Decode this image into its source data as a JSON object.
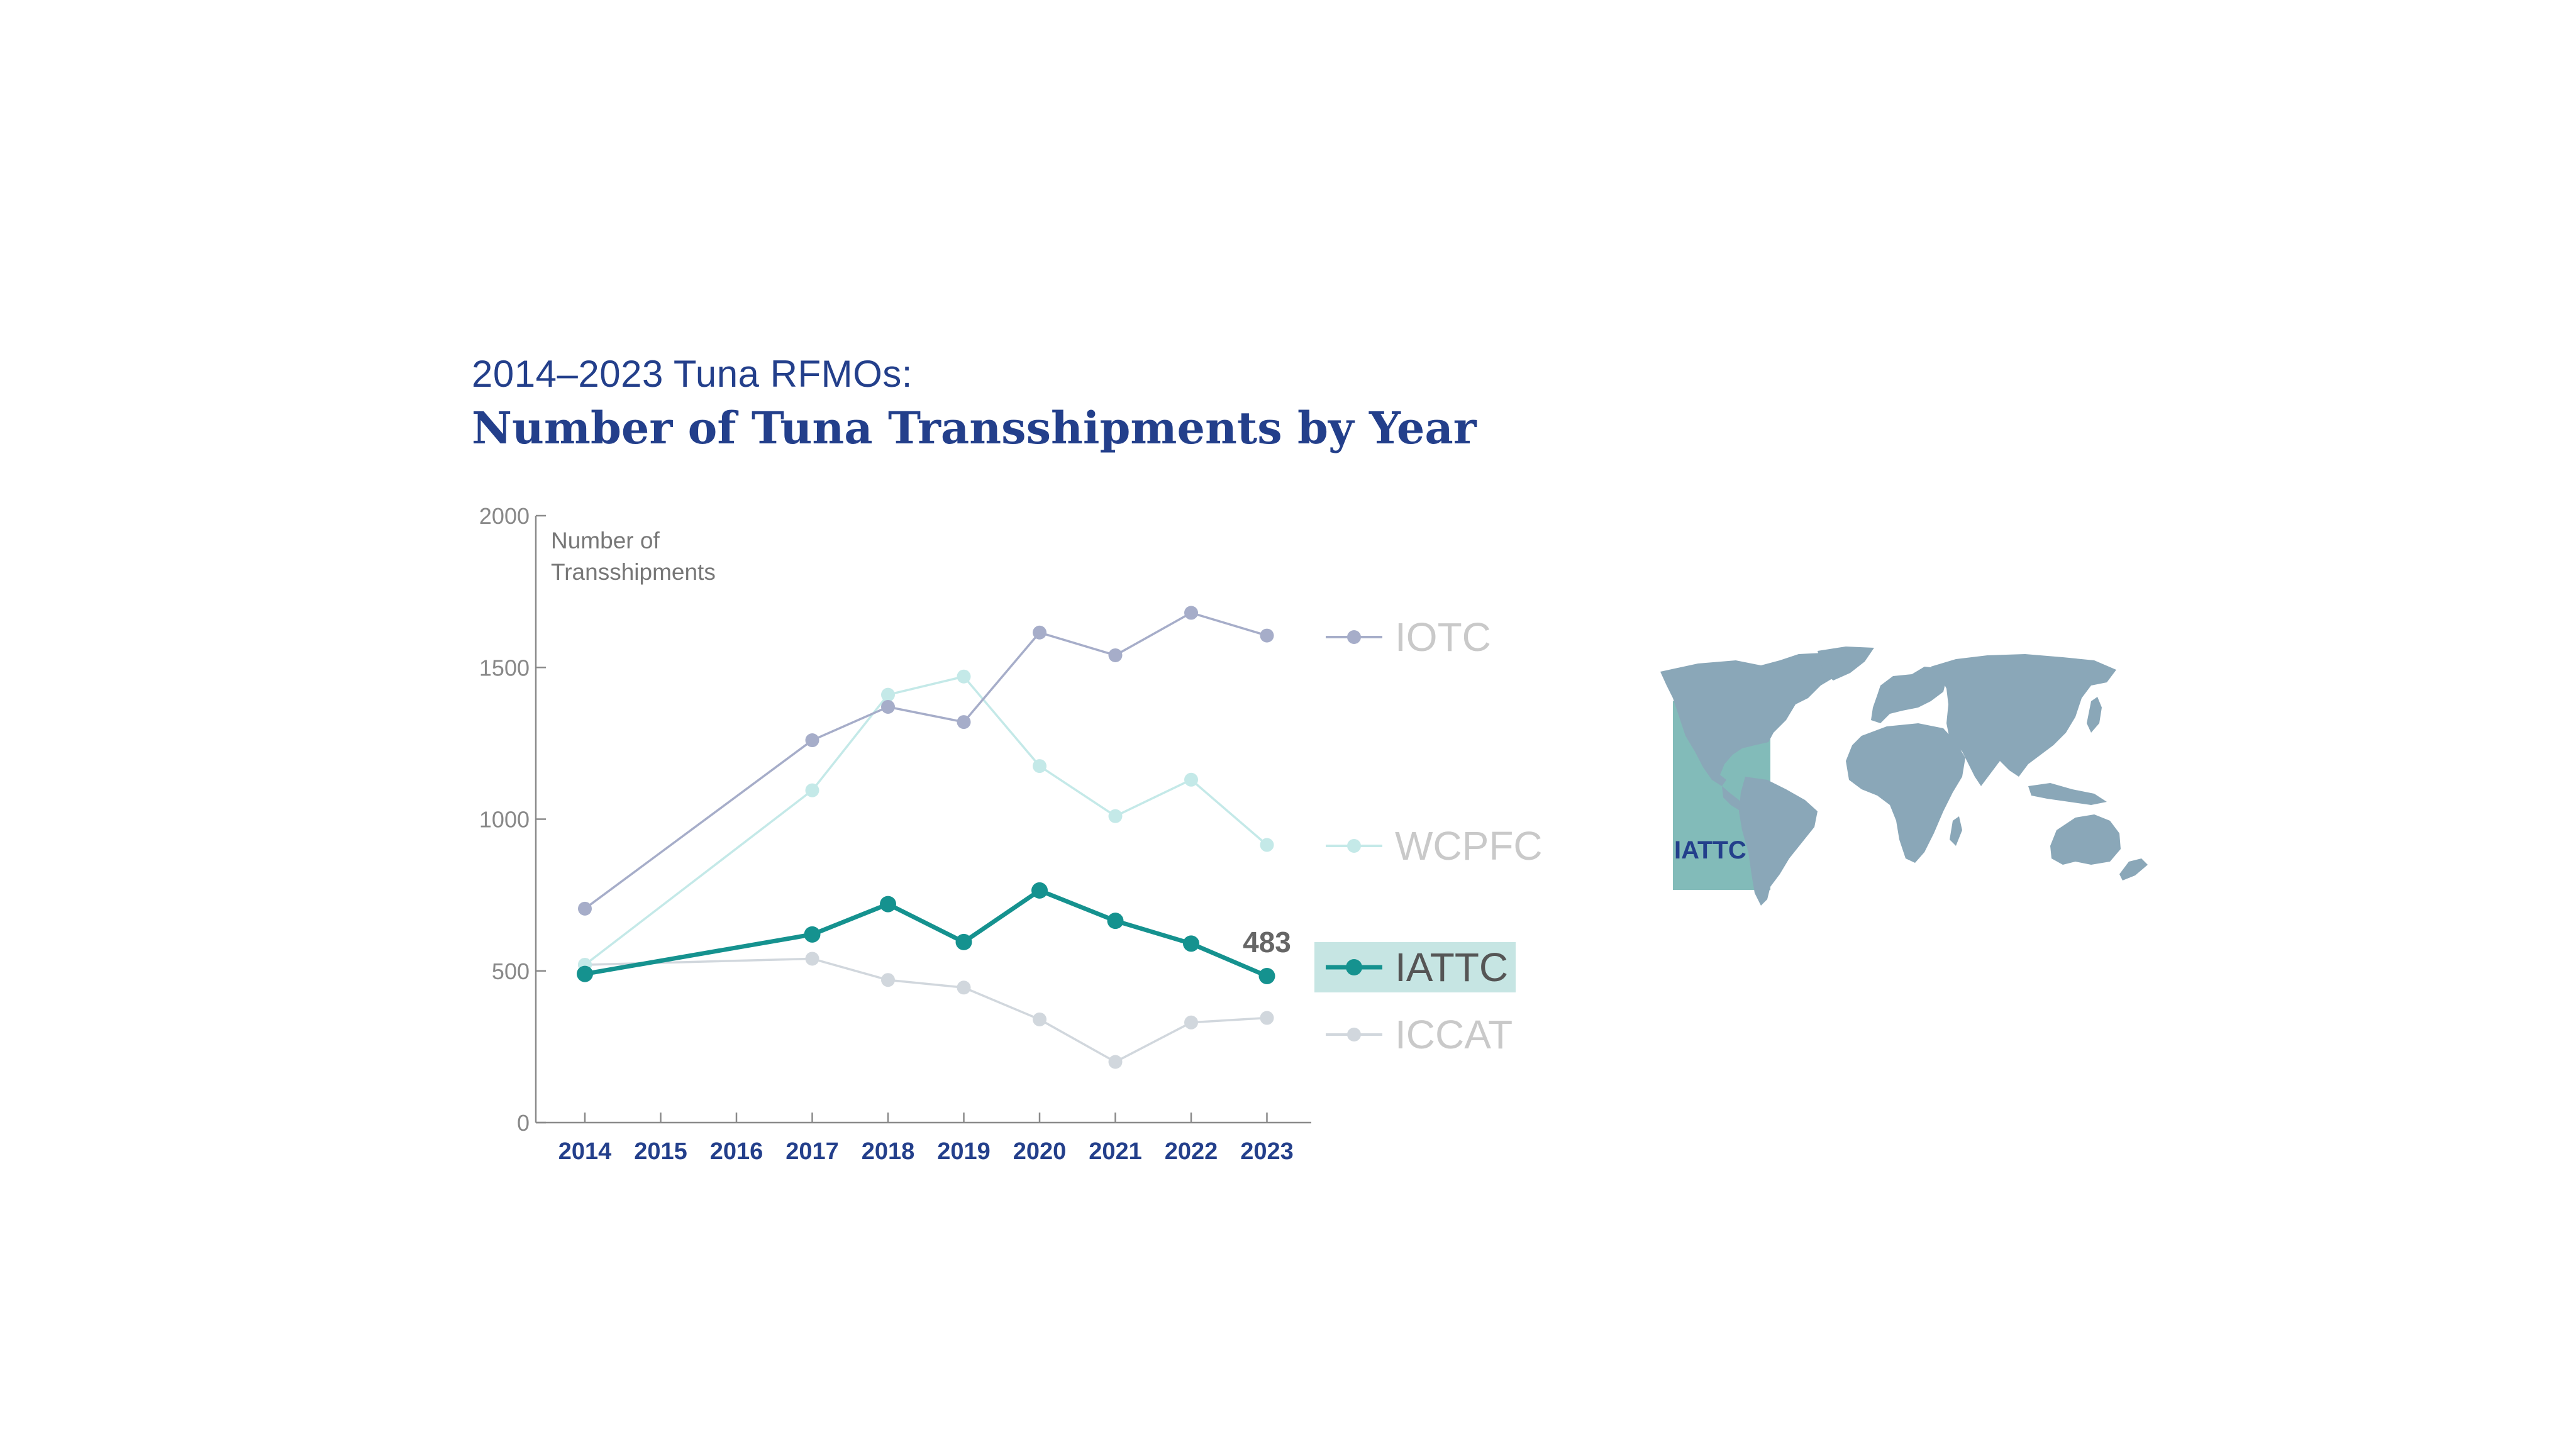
{
  "header": {
    "subtitle": "2014–2023 Tuna RFMOs:",
    "title": "Number of Tuna Transshipments by Year"
  },
  "colors": {
    "IOTC": "#a6adc9",
    "WCPFC": "#c4e9e8",
    "IATTC": "#15928f",
    "ICCAT": "#d1d7dd",
    "iattc_highlight": "#c6e5e3",
    "axis": "#8a8a8a",
    "tick_label": "#888888",
    "year_label": "#233f8b",
    "legend_text": "#c9c9c9",
    "legend_text_active": "#555555",
    "map_land": "#8aa7b8",
    "map_region": "#82bbb9",
    "map_label": "#233f8b"
  },
  "chart_data": {
    "type": "line",
    "title": "Number of Tuna Transshipments by Year",
    "subtitle": "2014–2023 Tuna RFMOs:",
    "ylabel_lines": [
      "Number of",
      "Transshipments"
    ],
    "xlabel": "",
    "ylim": [
      0,
      2000
    ],
    "yticks": [
      0,
      500,
      1000,
      1500,
      2000
    ],
    "categories": [
      "2014",
      "2015",
      "2016",
      "2017",
      "2018",
      "2019",
      "2020",
      "2021",
      "2022",
      "2023"
    ],
    "grid": false,
    "legend": "right, inline",
    "series": [
      {
        "name": "IOTC",
        "values": [
          705,
          null,
          null,
          1260,
          1370,
          1320,
          1615,
          1540,
          1680,
          1605
        ]
      },
      {
        "name": "WCPFC",
        "values": [
          520,
          null,
          null,
          1095,
          1410,
          1470,
          1175,
          1010,
          1130,
          915
        ]
      },
      {
        "name": "IATTC",
        "values": [
          490,
          null,
          null,
          620,
          720,
          595,
          765,
          665,
          590,
          483
        ]
      },
      {
        "name": "ICCAT",
        "values": [
          520,
          null,
          null,
          540,
          470,
          445,
          340,
          200,
          330,
          345
        ]
      }
    ],
    "highlight": "IATTC",
    "annotation": {
      "series": "IATTC",
      "category": "2023",
      "label": "483"
    }
  },
  "map": {
    "region_label": "IATTC"
  }
}
